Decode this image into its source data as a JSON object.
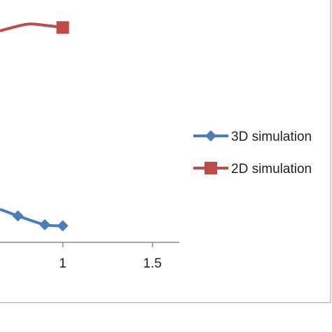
{
  "chart_data": {
    "type": "line",
    "title": "",
    "xlabel": "",
    "ylabel": "",
    "xlim": [
      0.65,
      1.65
    ],
    "ylim": [
      0,
      1.1
    ],
    "x_ticks": [
      {
        "value": 1,
        "label": "1"
      },
      {
        "value": 1.5,
        "label": "1.5"
      }
    ],
    "grid": false,
    "legend_position": "right",
    "series": [
      {
        "name": "3D simulation",
        "color": "#4a7ebb",
        "marker": "diamond",
        "x": [
          0.65,
          0.75,
          0.9,
          1.0
        ],
        "y": [
          0.15,
          0.12,
          0.08,
          0.075
        ]
      },
      {
        "name": "2D simulation",
        "color": "#be4b48",
        "marker": "square",
        "x": [
          0.65,
          0.8,
          0.9,
          1.0
        ],
        "y": [
          0.96,
          0.99,
          0.985,
          0.975
        ]
      }
    ]
  }
}
